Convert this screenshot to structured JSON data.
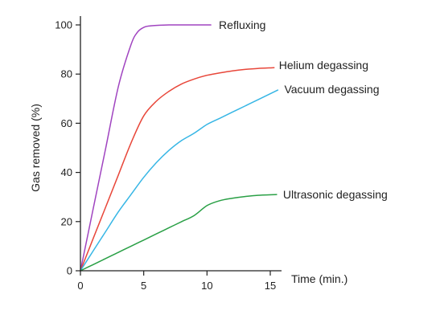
{
  "chart_data": {
    "type": "line",
    "title": "",
    "xlabel": "Time (min.)",
    "ylabel": "Gas removed (%)",
    "xlim": [
      0,
      15
    ],
    "ylim": [
      0,
      100
    ],
    "x_ticks": [
      0,
      5,
      10,
      15
    ],
    "y_ticks": [
      0,
      20,
      40,
      60,
      80,
      100
    ],
    "grid": false,
    "legend": "labels at line ends",
    "series": [
      {
        "name": "Refluxing",
        "color": "#a044c0",
        "x": [
          0,
          1,
          2,
          3,
          4,
          4.5,
          5,
          5.5,
          6,
          7,
          8,
          9,
          10.3
        ],
        "y": [
          0,
          25,
          50,
          75,
          92,
          97,
          99,
          99.6,
          99.8,
          100,
          100,
          100,
          100
        ]
      },
      {
        "name": "Helium degassing",
        "color": "#e8473a",
        "x": [
          0,
          1,
          2,
          3,
          4,
          5,
          6,
          7,
          8,
          9,
          10,
          11,
          12,
          13,
          14,
          15.3
        ],
        "y": [
          0,
          13,
          26,
          39,
          52,
          63,
          69,
          73,
          76,
          78,
          79.5,
          80.5,
          81.3,
          81.9,
          82.3,
          82.6
        ]
      },
      {
        "name": "Vacuum degassing",
        "color": "#37b6e5",
        "x": [
          0,
          1,
          2,
          3,
          4,
          5,
          6,
          7,
          8,
          9,
          10,
          11,
          12,
          13,
          14,
          15.6
        ],
        "y": [
          0,
          8,
          16,
          24,
          31,
          38,
          44,
          49,
          53,
          56,
          59.5,
          62,
          64.5,
          67,
          69.5,
          73.5
        ]
      },
      {
        "name": "Ultrasonic degassing",
        "color": "#2aa046",
        "x": [
          0,
          1,
          2,
          3,
          4,
          5,
          6,
          7,
          8,
          9,
          10,
          11,
          12,
          13,
          14,
          15.5
        ],
        "y": [
          0,
          2.5,
          5,
          7.5,
          10,
          12.5,
          15,
          17.5,
          20,
          22.5,
          26.5,
          28.5,
          29.5,
          30.2,
          30.7,
          31
        ]
      }
    ]
  }
}
